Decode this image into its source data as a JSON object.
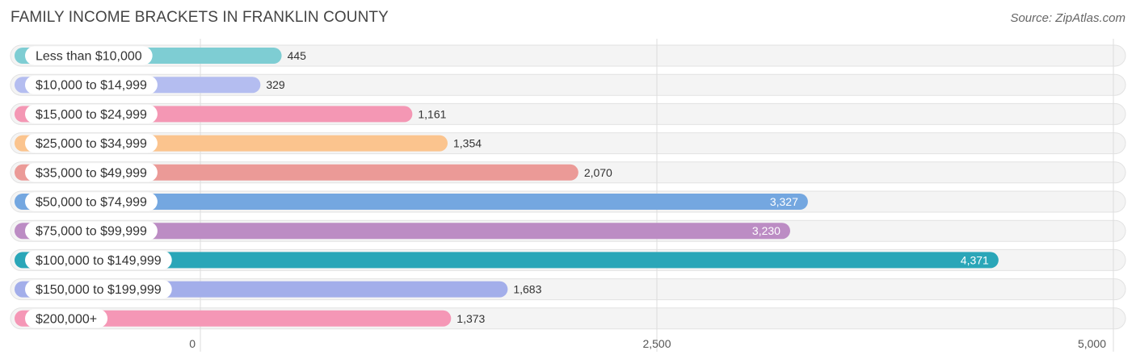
{
  "header": {
    "title": "FAMILY INCOME BRACKETS IN FRANKLIN COUNTY",
    "source": "Source: ZipAtlas.com"
  },
  "chart_data": {
    "type": "bar",
    "orientation": "horizontal",
    "title": "FAMILY INCOME BRACKETS IN FRANKLIN COUNTY",
    "xlabel": "",
    "ylabel": "",
    "xlim": [
      0,
      5000
    ],
    "ticks": [
      0,
      2500,
      5000
    ],
    "tick_labels": [
      "0",
      "2,500",
      "5,000"
    ],
    "grid": true,
    "categories": [
      "Less than $10,000",
      "$10,000 to $14,999",
      "$15,000 to $24,999",
      "$25,000 to $34,999",
      "$35,000 to $49,999",
      "$50,000 to $74,999",
      "$75,000 to $99,999",
      "$100,000 to $149,999",
      "$150,000 to $199,999",
      "$200,000+"
    ],
    "values": [
      445,
      329,
      1161,
      1354,
      2070,
      3327,
      3230,
      4371,
      1683,
      1373
    ],
    "value_labels": [
      "445",
      "329",
      "1,161",
      "1,354",
      "2,070",
      "3,327",
      "3,230",
      "4,371",
      "1,683",
      "1,373"
    ],
    "colors": [
      "#7ecdd3",
      "#b4bdf0",
      "#f497b4",
      "#fbc48e",
      "#eb9a97",
      "#74a7e0",
      "#bc8cc4",
      "#2aa6b8",
      "#a3aeea",
      "#f597b6"
    ],
    "label_inside": [
      false,
      false,
      false,
      false,
      false,
      true,
      true,
      true,
      false,
      false
    ]
  }
}
